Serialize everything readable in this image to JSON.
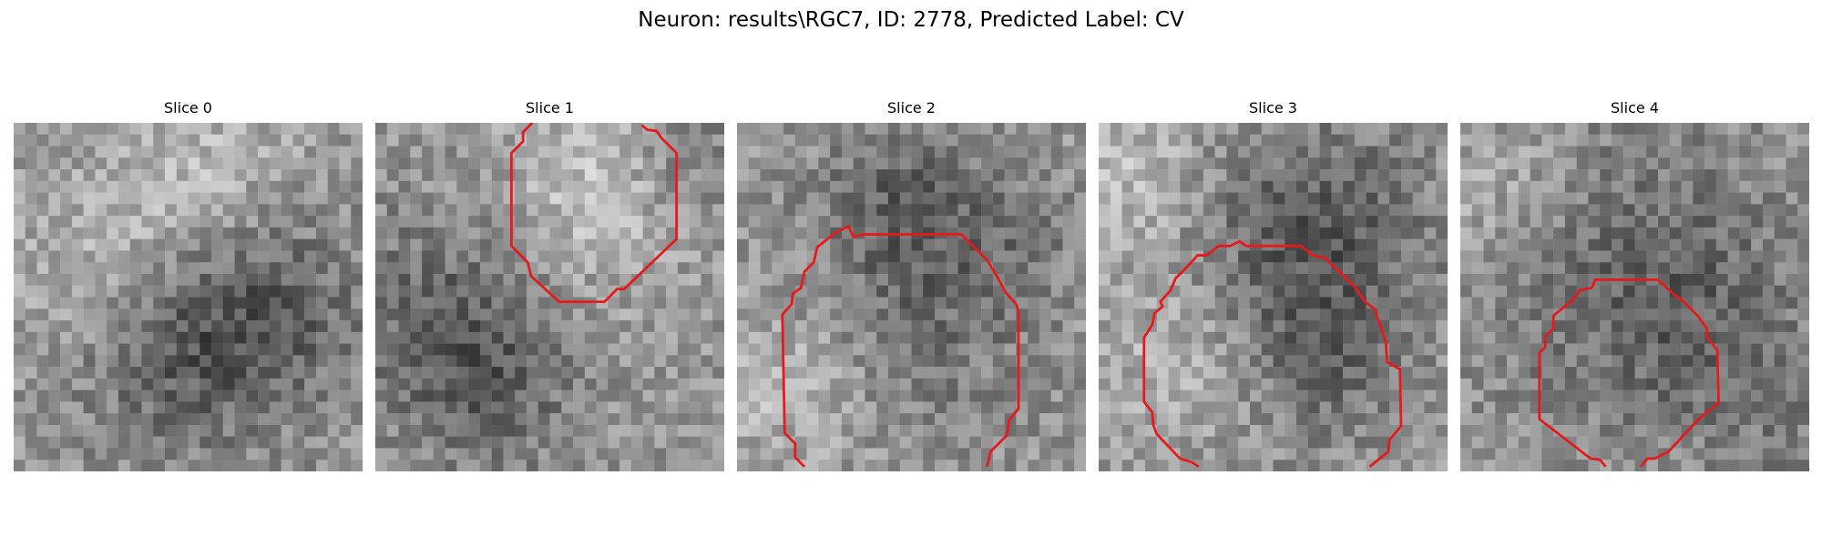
{
  "figure": {
    "title": "Neuron: results\\RGC7, ID: 2778, Predicted Label: CV"
  },
  "colors": {
    "contour": "#e41a1c",
    "background": "#ffffff"
  },
  "slices": [
    {
      "title": "Slice 0",
      "has_contour": false,
      "image": "grayscale-noise-microscopy-patch"
    },
    {
      "title": "Slice 1",
      "has_contour": true,
      "image": "grayscale-noise-microscopy-patch"
    },
    {
      "title": "Slice 2",
      "has_contour": true,
      "image": "grayscale-noise-microscopy-patch"
    },
    {
      "title": "Slice 3",
      "has_contour": true,
      "image": "grayscale-noise-microscopy-patch"
    },
    {
      "title": "Slice 4",
      "has_contour": true,
      "image": "grayscale-noise-microscopy-patch"
    }
  ]
}
